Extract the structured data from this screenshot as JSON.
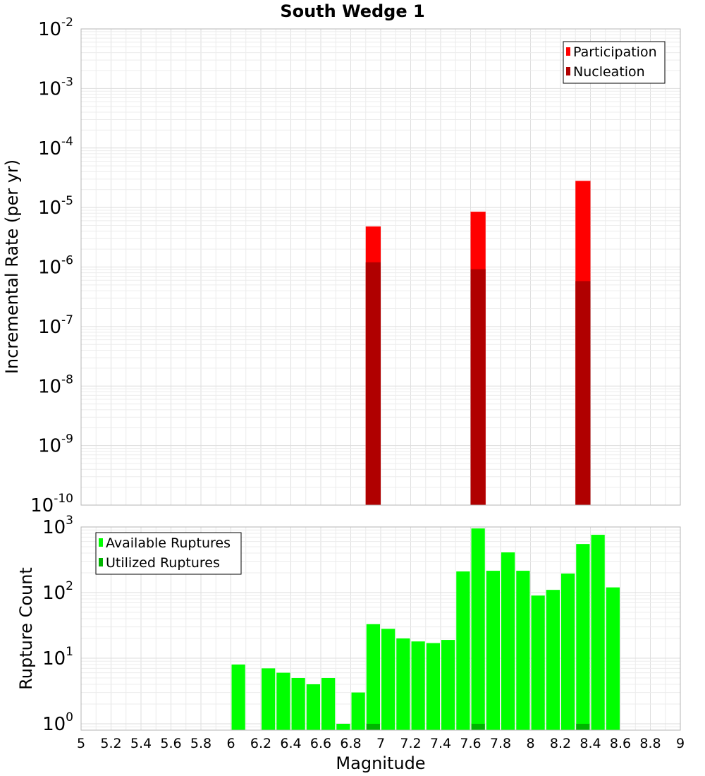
{
  "chart_data": [
    {
      "type": "bar",
      "title": "South Wedge 1",
      "xlabel": "",
      "ylabel": "Incremental Rate (per yr)",
      "yscale": "log",
      "ylim": [
        1e-10,
        0.01
      ],
      "xlim": [
        5,
        9
      ],
      "bin_width": 0.1,
      "legend_position": "top-right",
      "y_ticks": [
        {
          "base": "10",
          "exp": "-10",
          "value": 1e-10
        },
        {
          "base": "10",
          "exp": "-9",
          "value": 1e-09
        },
        {
          "base": "10",
          "exp": "-8",
          "value": 1e-08
        },
        {
          "base": "10",
          "exp": "-7",
          "value": 1e-07
        },
        {
          "base": "10",
          "exp": "-6",
          "value": 1e-06
        },
        {
          "base": "10",
          "exp": "-5",
          "value": 1e-05
        },
        {
          "base": "10",
          "exp": "-4",
          "value": 0.0001
        },
        {
          "base": "10",
          "exp": "-3",
          "value": 0.001
        },
        {
          "base": "10",
          "exp": "-2",
          "value": 0.01
        }
      ],
      "series": [
        {
          "name": "Participation",
          "color": "#ff0000",
          "points": [
            {
              "x": 6.95,
              "y": 4.8e-06
            },
            {
              "x": 7.65,
              "y": 8.5e-06
            },
            {
              "x": 8.35,
              "y": 2.8e-05
            }
          ]
        },
        {
          "name": "Nucleation",
          "color": "#b00000",
          "points": [
            {
              "x": 6.95,
              "y": 1.2e-06
            },
            {
              "x": 7.65,
              "y": 9.2e-07
            },
            {
              "x": 8.35,
              "y": 5.8e-07
            }
          ]
        }
      ]
    },
    {
      "type": "bar",
      "title": "",
      "xlabel": "Magnitude",
      "ylabel": "Rupture Count",
      "yscale": "log",
      "ylim": [
        0.8,
        1000
      ],
      "xlim": [
        5,
        9
      ],
      "bin_width": 0.1,
      "legend_position": "top-left",
      "x_ticks": [
        "5",
        "5.2",
        "5.4",
        "5.6",
        "5.8",
        "6",
        "6.2",
        "6.4",
        "6.6",
        "6.8",
        "7",
        "7.2",
        "7.4",
        "7.6",
        "7.8",
        "8",
        "8.2",
        "8.4",
        "8.6",
        "8.8",
        "9"
      ],
      "y_ticks": [
        {
          "base": "10",
          "exp": "0",
          "value": 1
        },
        {
          "base": "10",
          "exp": "1",
          "value": 10
        },
        {
          "base": "10",
          "exp": "2",
          "value": 100
        },
        {
          "base": "10",
          "exp": "3",
          "value": 1000
        }
      ],
      "series": [
        {
          "name": "Available Ruptures",
          "color": "#00ff00",
          "points": [
            {
              "x": 6.05,
              "y": 8
            },
            {
              "x": 6.25,
              "y": 7
            },
            {
              "x": 6.35,
              "y": 6
            },
            {
              "x": 6.45,
              "y": 5
            },
            {
              "x": 6.55,
              "y": 4
            },
            {
              "x": 6.65,
              "y": 5
            },
            {
              "x": 6.75,
              "y": 1
            },
            {
              "x": 6.85,
              "y": 3
            },
            {
              "x": 6.95,
              "y": 33
            },
            {
              "x": 7.05,
              "y": 28
            },
            {
              "x": 7.15,
              "y": 20
            },
            {
              "x": 7.25,
              "y": 18
            },
            {
              "x": 7.35,
              "y": 17
            },
            {
              "x": 7.45,
              "y": 19
            },
            {
              "x": 7.55,
              "y": 210
            },
            {
              "x": 7.65,
              "y": 950
            },
            {
              "x": 7.75,
              "y": 215
            },
            {
              "x": 7.85,
              "y": 410
            },
            {
              "x": 7.95,
              "y": 215
            },
            {
              "x": 8.05,
              "y": 90
            },
            {
              "x": 8.15,
              "y": 110
            },
            {
              "x": 8.25,
              "y": 195
            },
            {
              "x": 8.35,
              "y": 550
            },
            {
              "x": 8.45,
              "y": 760
            },
            {
              "x": 8.55,
              "y": 120
            }
          ]
        },
        {
          "name": "Utilized Ruptures",
          "color": "#00b400",
          "points": [
            {
              "x": 6.95,
              "y": 1
            },
            {
              "x": 7.65,
              "y": 1
            },
            {
              "x": 8.35,
              "y": 1
            }
          ]
        }
      ]
    }
  ]
}
